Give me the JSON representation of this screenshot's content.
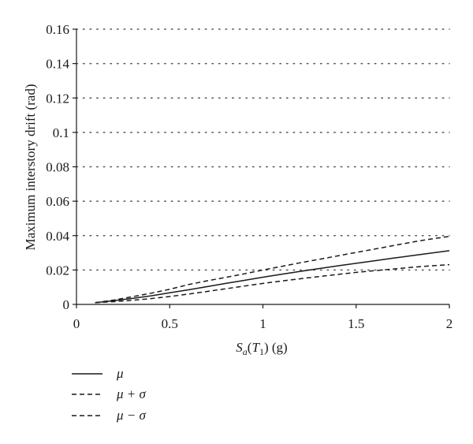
{
  "chart_data": {
    "type": "line",
    "xlabel": {
      "main": "S",
      "sub1": "a",
      "paren_open": "(",
      "T": "T",
      "sub2": "1",
      "paren_close": ")",
      "unit": " (g)"
    },
    "ylabel": "Maximum interstory drift (rad)",
    "xlim": [
      0,
      2
    ],
    "ylim": [
      0,
      0.16
    ],
    "x_ticks": [
      {
        "value": 0,
        "label": "0"
      },
      {
        "value": 0.5,
        "label": "0.5"
      },
      {
        "value": 1,
        "label": "1"
      },
      {
        "value": 1.5,
        "label": "1.5"
      },
      {
        "value": 2,
        "label": "2"
      }
    ],
    "y_ticks": [
      {
        "value": 0,
        "label": "0"
      },
      {
        "value": 0.02,
        "label": "0.02"
      },
      {
        "value": 0.04,
        "label": "0.04"
      },
      {
        "value": 0.06,
        "label": "0.06"
      },
      {
        "value": 0.08,
        "label": "0.08"
      },
      {
        "value": 0.1,
        "label": "0.1"
      },
      {
        "value": 0.12,
        "label": "0.12"
      },
      {
        "value": 0.14,
        "label": "0.14"
      },
      {
        "value": 0.16,
        "label": "0.16"
      }
    ],
    "grid": "horizontal dotted",
    "legend_position": "bottom-left",
    "colors": {
      "line": "#1a1a1a",
      "grid": "#555555"
    },
    "series": [
      {
        "name": "μ",
        "style": "solid",
        "x": [
          0.1,
          0.2,
          0.3,
          0.4,
          0.5,
          0.6,
          0.7,
          0.8,
          0.9,
          1.0,
          1.1,
          1.2,
          1.3,
          1.4,
          1.5,
          1.6,
          1.7,
          1.8,
          1.9,
          2.0
        ],
        "y": [
          0.001,
          0.0022,
          0.0035,
          0.005,
          0.0068,
          0.0085,
          0.0103,
          0.0122,
          0.014,
          0.0158,
          0.0175,
          0.0192,
          0.0208,
          0.0224,
          0.0239,
          0.0254,
          0.0269,
          0.0284,
          0.0298,
          0.0312
        ]
      },
      {
        "name": "μ + σ",
        "style": "dashed",
        "x": [
          0.1,
          0.2,
          0.3,
          0.4,
          0.5,
          0.6,
          0.7,
          0.8,
          0.9,
          1.0,
          1.1,
          1.2,
          1.3,
          1.4,
          1.5,
          1.6,
          1.7,
          1.8,
          1.9,
          2.0
        ],
        "y": [
          0.001,
          0.0025,
          0.0045,
          0.0065,
          0.0088,
          0.0115,
          0.0137,
          0.0157,
          0.0178,
          0.02,
          0.0221,
          0.0242,
          0.0262,
          0.0282,
          0.0302,
          0.0322,
          0.0342,
          0.0362,
          0.038,
          0.0395
        ]
      },
      {
        "name": "μ − σ",
        "style": "dashed",
        "x": [
          0.1,
          0.2,
          0.3,
          0.4,
          0.5,
          0.6,
          0.7,
          0.8,
          0.9,
          1.0,
          1.1,
          1.2,
          1.3,
          1.4,
          1.5,
          1.6,
          1.7,
          1.8,
          1.9,
          2.0
        ],
        "y": [
          0.001,
          0.0016,
          0.0024,
          0.0034,
          0.0046,
          0.006,
          0.0075,
          0.0091,
          0.0107,
          0.0122,
          0.0136,
          0.0149,
          0.0162,
          0.0174,
          0.0186,
          0.0196,
          0.0206,
          0.0216,
          0.0224,
          0.0231
        ]
      }
    ]
  }
}
